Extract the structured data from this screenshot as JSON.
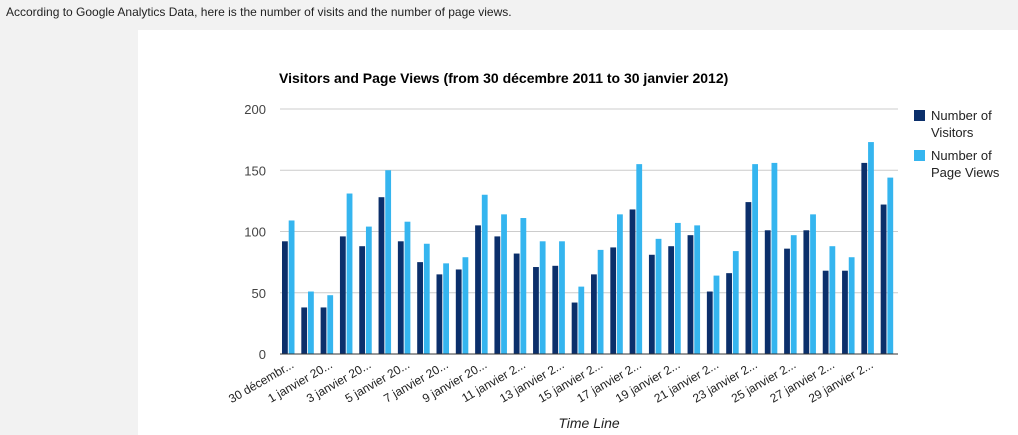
{
  "intro_text": "According to Google Analytics Data, here is the number of visits and the number of page views.",
  "chart_data": {
    "type": "bar",
    "title": "Visitors and Page Views (from 30 décembre 2011 to 30 janvier 2012)",
    "xlabel": "Time Line",
    "ylabel": "",
    "ylim": [
      0,
      200
    ],
    "yticks": [
      "0",
      "50",
      "100",
      "150",
      "200"
    ],
    "grid": true,
    "legend_position": "right",
    "x_tick_labels": [
      "30 décembr...",
      "1 janvier 20...",
      "3 janvier 20...",
      "5 janvier 20...",
      "7 janvier 20...",
      "9 janvier 20...",
      "11 janvier 2...",
      "13 janvier 2...",
      "15 janvier 2...",
      "17 janvier 2...",
      "19 janvier 2...",
      "21 janvier 2...",
      "23 janvier 2...",
      "25 janvier 2...",
      "27 janvier 2...",
      "29 janvier 2..."
    ],
    "series": [
      {
        "name_lines": [
          "Number of",
          "Visitors"
        ],
        "color": "#0b2f6b",
        "values": [
          92,
          38,
          38,
          96,
          88,
          128,
          92,
          75,
          65,
          69,
          105,
          96,
          82,
          71,
          72,
          42,
          65,
          87,
          118,
          81,
          88,
          97,
          51,
          66,
          124,
          101,
          86,
          101,
          68,
          68,
          156,
          122
        ]
      },
      {
        "name_lines": [
          "Number of",
          "Page Views"
        ],
        "color": "#35b5ef",
        "values": [
          109,
          51,
          48,
          131,
          104,
          150,
          108,
          90,
          74,
          79,
          130,
          114,
          111,
          92,
          92,
          55,
          85,
          114,
          155,
          94,
          107,
          105,
          64,
          84,
          155,
          156,
          97,
          114,
          88,
          79,
          173,
          144
        ]
      }
    ]
  }
}
